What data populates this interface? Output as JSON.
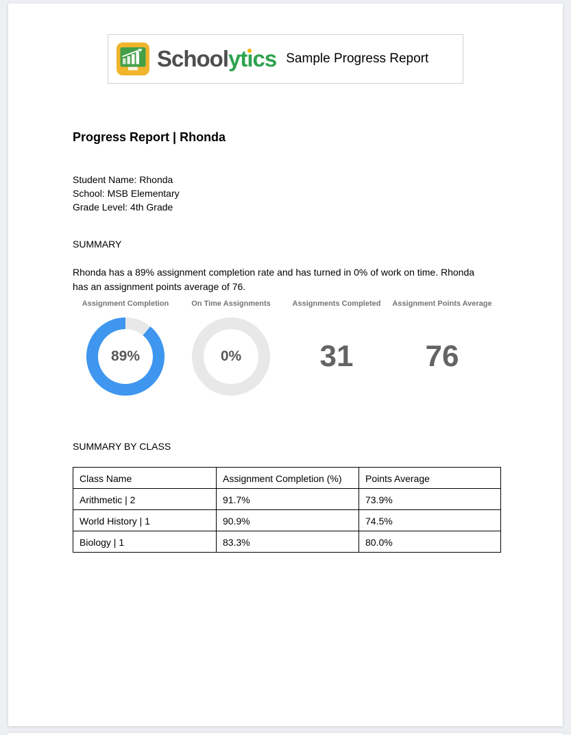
{
  "header": {
    "brand": {
      "name": "Schoolytics",
      "part_school": "School",
      "part_yt": "yt",
      "part_i_dotless": "ı",
      "part_cs": "cs",
      "colors": {
        "wordmark_dark": "#4d4d4d",
        "wordmark_green": "#2ea24f",
        "i_dot_yellow": "#f4b400",
        "icon_frame_yellow": "#f0b42d",
        "icon_board_green": "#43a047"
      }
    },
    "title": "Sample Progress Report"
  },
  "report": {
    "heading": "Progress Report | Rhonda",
    "student": {
      "name_line": "Student Name: Rhonda",
      "school_line": "School: MSB Elementary",
      "grade_line": "Grade Level: 4th Grade"
    }
  },
  "summary": {
    "heading": "SUMMARY",
    "text": "Rhonda has a 89% assignment completion rate and has turned in 0% of work on time. Rhonda has an assignment points average of 76.",
    "lines": [
      "Rhonda has a 89% assignment completion rate and has turned in 0% of work on time. Rhonda",
      "has an assignment points average of 76."
    ]
  },
  "chart_data": {
    "type": "pie",
    "subtype": "donut-gauges-and-big-numbers",
    "legend_position": "none",
    "charts": [
      {
        "kind": "donut",
        "label": "Assignment Completion",
        "value_pct": 89,
        "display": "89%",
        "arc_color": "#3e96ef",
        "track_color": "#e8e8e8"
      },
      {
        "kind": "donut",
        "label": "On Time Assignments",
        "value_pct": 0,
        "display": "0%",
        "arc_color": "#3e96ef",
        "track_color": "#e8e8e8"
      },
      {
        "kind": "number",
        "label": "Assignments Completed",
        "display": "31"
      },
      {
        "kind": "number",
        "label": "Assignment Points Average",
        "display": "76"
      }
    ]
  },
  "summary_by_class": {
    "heading": "SUMMARY BY CLASS",
    "table": {
      "columns": [
        "Class Name",
        "Assignment Completion (%)",
        "Points Average"
      ],
      "rows": [
        [
          "Arithmetic | 2",
          "91.7%",
          "73.9%"
        ],
        [
          "World History | 1",
          "90.9%",
          "74.5%"
        ],
        [
          "Biology | 1",
          "83.3%",
          "80.0%"
        ]
      ]
    }
  }
}
